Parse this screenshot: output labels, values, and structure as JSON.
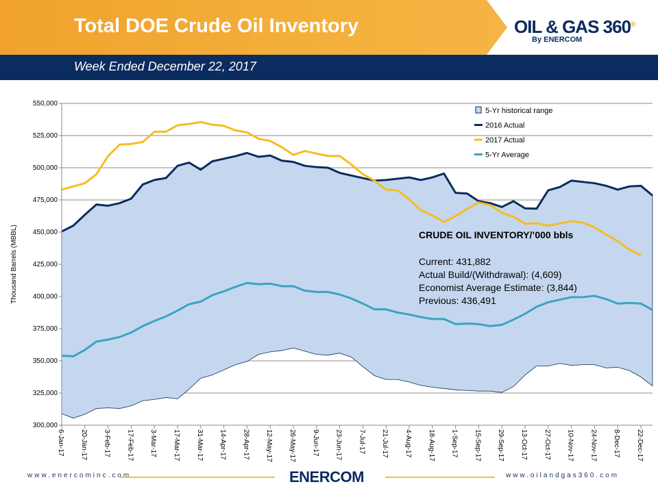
{
  "header": {
    "title": "Total DOE Crude Oil Inventory",
    "subtitle": "Week Ended December 22, 2017",
    "logo_text": "OIL & GAS 360",
    "logo_sub": "By ENERCOM"
  },
  "footer": {
    "left_url": "www.enercominc.com",
    "right_url": "www.oilandgas360.com",
    "logo": "ENERCOM"
  },
  "chart_data": {
    "type": "line",
    "title": "",
    "ylabel": "Thousand Barrels (MBBL)",
    "xlabel": "",
    "ylim": [
      300000,
      550000
    ],
    "y_ticks": [
      "300,000",
      "325,000",
      "350,000",
      "375,000",
      "400,000",
      "425,000",
      "450,000",
      "475,000",
      "500,000",
      "525,000",
      "550,000"
    ],
    "x_tick_labels": [
      "6-Jan-17",
      "20-Jan-17",
      "3-Feb-17",
      "17-Feb-17",
      "3-Mar-17",
      "17-Mar-17",
      "31-Mar-17",
      "14-Apr-17",
      "28-Apr-17",
      "12-May-17",
      "26-May-17",
      "9-Jun-17",
      "23-Jun-17",
      "7-Jul-17",
      "21-Jul-17",
      "4-Aug-17",
      "18-Aug-17",
      "1-Sep-17",
      "15-Sep-17",
      "29-Sep-17",
      "13-Oct-17",
      "27-Oct-17",
      "10-Nov-17",
      "24-Nov-17",
      "8-Dec-17",
      "22-Dec-17"
    ],
    "x_note": "weekly points, 6-Jan-17 through 29-Dec-17",
    "grid": true,
    "legend_position": "top-right",
    "range": {
      "name": "5-Yr historical range",
      "color": "#c5d7ee",
      "low": [
        309,
        305.5,
        308.5,
        313,
        313.5,
        313,
        315,
        319,
        320,
        321.5,
        320.5,
        328,
        336.5,
        339,
        343,
        347,
        349.5,
        355,
        357,
        358,
        360,
        357.5,
        355,
        354.5,
        356,
        353,
        345.5,
        338.5,
        335.5,
        335.5,
        333.5,
        331,
        329.5,
        328.5,
        327.5,
        327,
        326.5,
        326.5,
        325.5,
        330,
        339,
        346,
        346,
        348,
        346.5,
        347,
        347,
        344.5,
        345,
        342.5,
        337.5,
        330.5
      ],
      "high": [
        450.5,
        455,
        463.5,
        471.5,
        470.5,
        472.5,
        476,
        487,
        490.5,
        492,
        501.5,
        504,
        498.5,
        505,
        507,
        509,
        511.5,
        508.5,
        509.5,
        505.5,
        504.5,
        501.5,
        500.5,
        500,
        496,
        494,
        492,
        490,
        490.5,
        491.5,
        492.5,
        490.5,
        492.5,
        495.5,
        480.5,
        480,
        474,
        472.5,
        469.5,
        474,
        468.5,
        468.2,
        482.5,
        485,
        490,
        489,
        488,
        486,
        483,
        485.5,
        486,
        478.5
      ]
    },
    "series": [
      {
        "name": "2016 Actual",
        "color": "#0b2c5f",
        "values": [
          450.5,
          455,
          463.5,
          471.5,
          470.5,
          472.5,
          476,
          487,
          490.5,
          492,
          501.5,
          504,
          498.5,
          505,
          507,
          509,
          511.5,
          508.5,
          509.5,
          505.5,
          504.5,
          501.5,
          500.5,
          500,
          496,
          494,
          492,
          490,
          490.5,
          491.5,
          492.5,
          490.5,
          492.5,
          495.5,
          480.5,
          480,
          474,
          472.5,
          469.5,
          474,
          468.5,
          468.2,
          482.5,
          485,
          490,
          489,
          488,
          486,
          483,
          485.5,
          486,
          478.5
        ]
      },
      {
        "name": "2017 Actual",
        "color": "#f5bd1f",
        "values": [
          483,
          485.5,
          488,
          495,
          509,
          518,
          518.5,
          520,
          528,
          528,
          533,
          534,
          535.5,
          533.5,
          532.5,
          529,
          527.5,
          522.5,
          520.8,
          516,
          510,
          513,
          511,
          509.1,
          509.2,
          502.5,
          495,
          490,
          483,
          482.5,
          475.5,
          467,
          463,
          457.8,
          462.4,
          468,
          473,
          471,
          465,
          462,
          456.5,
          457,
          454.9,
          456.7,
          458.5,
          457.3,
          453.7,
          448.2,
          443,
          436.5,
          431.882
        ]
      },
      {
        "name": "5-Yr Average",
        "color": "#3aa3c3",
        "values": [
          354,
          353.5,
          358.5,
          365,
          366.5,
          368.5,
          372,
          377,
          381,
          384.5,
          389,
          394,
          396,
          401,
          404,
          407.5,
          410.5,
          409.5,
          410,
          408,
          408,
          404.5,
          403.5,
          403.5,
          401.5,
          398.5,
          394.5,
          390,
          390,
          387.5,
          386,
          384,
          382.5,
          382.5,
          378.5,
          379,
          378.5,
          377,
          378,
          382,
          386.5,
          392,
          395.5,
          397.5,
          399.5,
          399.5,
          400.5,
          398,
          394.5,
          395,
          394.5,
          389.5
        ]
      }
    ],
    "value_units": "thousand barrels (thousands)",
    "annotation": {
      "heading": "CRUDE OIL INVENTORY/’000 bbls",
      "lines": [
        "Current: 431,882",
        "Actual Build/(Withdrawal):  (4,609)",
        "Economist Average Estimate: (3,844)",
        "Previous: 436,491"
      ]
    }
  }
}
